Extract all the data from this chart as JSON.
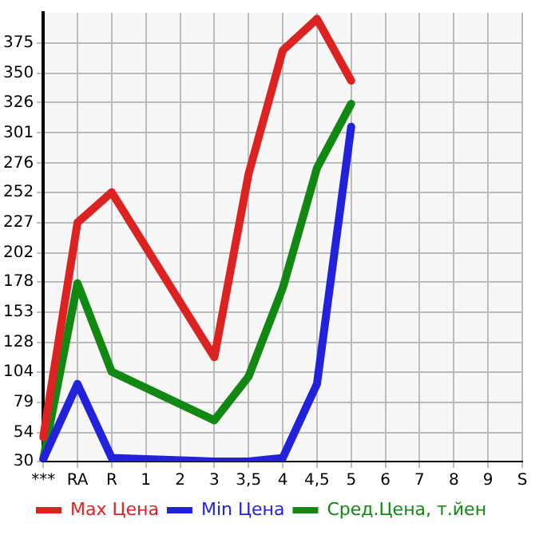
{
  "chart_data": {
    "type": "line",
    "categories": [
      "***",
      "RA",
      "R",
      "1",
      "2",
      "3",
      "3,5",
      "4",
      "4,5",
      "5",
      "6",
      "7",
      "8",
      "9",
      "S"
    ],
    "series": [
      {
        "name": "Max Цена",
        "color": "#dd2222",
        "values": [
          50,
          227,
          252,
          null,
          null,
          116,
          267,
          369,
          395,
          344,
          null,
          null,
          null,
          null,
          null
        ]
      },
      {
        "name": "Min Цена",
        "color": "#2222dd",
        "values": [
          32,
          94,
          33,
          null,
          null,
          30,
          30,
          33,
          94,
          306,
          null,
          null,
          null,
          null,
          null
        ]
      },
      {
        "name": "Сред.Цена, т.йен",
        "color": "#118811",
        "values": [
          32,
          177,
          104,
          null,
          null,
          64,
          100,
          173,
          272,
          325,
          null,
          null,
          null,
          null,
          null
        ]
      }
    ],
    "ylim": [
      30,
      400
    ],
    "yticks": [
      30,
      54,
      79,
      104,
      128,
      153,
      178,
      202,
      227,
      252,
      276,
      301,
      326,
      350,
      375
    ],
    "grid": true,
    "legend": "bottom",
    "marker": "none",
    "line_style": "solid"
  }
}
